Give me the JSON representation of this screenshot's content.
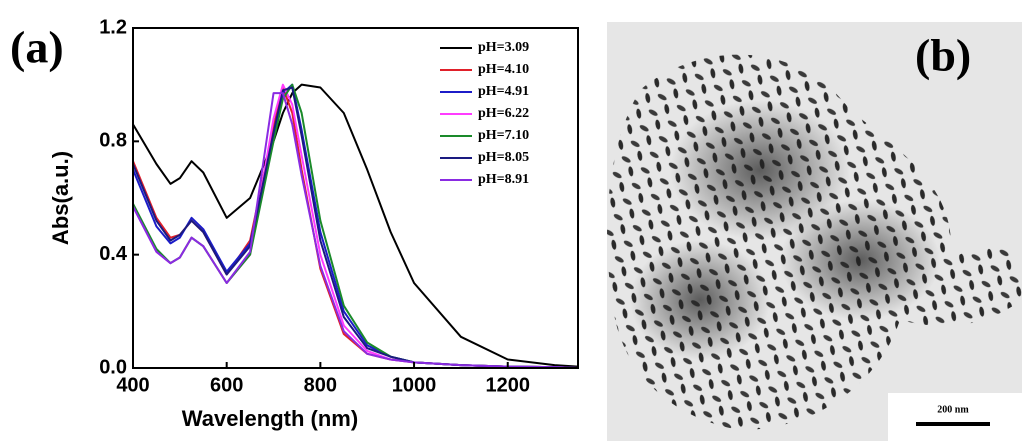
{
  "chart_data": {
    "type": "line",
    "panel_label": "(a)",
    "x_label": "Wavelength (nm)",
    "y_label": "Abs(a.u.)",
    "xlim": [
      400,
      1350
    ],
    "ylim": [
      0,
      1.2
    ],
    "xticks": [
      400,
      600,
      800,
      1000,
      1200
    ],
    "yticks": [
      {
        "value": 0,
        "label": "0.0"
      },
      {
        "value": 0.4,
        "label": "0.4"
      },
      {
        "value": 0.8,
        "label": "0.8"
      },
      {
        "value": 1.2,
        "label": "1.2"
      }
    ],
    "legend": "upper right",
    "x": [
      400,
      450,
      480,
      500,
      525,
      550,
      600,
      650,
      700,
      720,
      740,
      760,
      800,
      850,
      900,
      950,
      1000,
      1100,
      1200,
      1300,
      1350
    ],
    "series": [
      {
        "name": "pH=3.09",
        "color": "#000000",
        "values": [
          0.86,
          0.72,
          0.65,
          0.67,
          0.73,
          0.69,
          0.53,
          0.6,
          0.8,
          0.9,
          0.97,
          1.0,
          0.99,
          0.9,
          0.7,
          0.48,
          0.3,
          0.11,
          0.03,
          0.01,
          0.005
        ]
      },
      {
        "name": "pH=4.10",
        "color": "#e0202a",
        "values": [
          0.73,
          0.53,
          0.46,
          0.47,
          0.52,
          0.48,
          0.33,
          0.45,
          0.85,
          0.99,
          0.9,
          0.7,
          0.35,
          0.12,
          0.05,
          0.03,
          0.02,
          0.01,
          0.005,
          0.003,
          0
        ]
      },
      {
        "name": "pH=4.91",
        "color": "#1c1cc8",
        "values": [
          0.7,
          0.5,
          0.44,
          0.46,
          0.53,
          0.49,
          0.34,
          0.44,
          0.82,
          0.97,
          1.0,
          0.84,
          0.48,
          0.2,
          0.08,
          0.04,
          0.02,
          0.01,
          0.005,
          0.003,
          0
        ]
      },
      {
        "name": "pH=6.22",
        "color": "#ff3cff",
        "values": [
          0.57,
          0.41,
          0.37,
          0.39,
          0.46,
          0.43,
          0.3,
          0.4,
          0.88,
          1.0,
          0.93,
          0.75,
          0.4,
          0.15,
          0.06,
          0.03,
          0.02,
          0.01,
          0.005,
          0.003,
          0
        ]
      },
      {
        "name": "pH=7.10",
        "color": "#1a8a2a",
        "values": [
          0.58,
          0.42,
          0.37,
          0.39,
          0.46,
          0.43,
          0.3,
          0.4,
          0.8,
          0.95,
          1.0,
          0.9,
          0.52,
          0.22,
          0.09,
          0.04,
          0.02,
          0.01,
          0.005,
          0.003,
          0
        ]
      },
      {
        "name": "pH=8.05",
        "color": "#1a1a80",
        "values": [
          0.72,
          0.52,
          0.45,
          0.47,
          0.52,
          0.48,
          0.33,
          0.43,
          0.83,
          0.98,
          0.99,
          0.82,
          0.45,
          0.18,
          0.07,
          0.04,
          0.02,
          0.01,
          0.005,
          0.003,
          0
        ]
      },
      {
        "name": "pH=8.91",
        "color": "#8a2be2",
        "values": [
          0.57,
          0.41,
          0.37,
          0.39,
          0.46,
          0.43,
          0.3,
          0.41,
          0.97,
          0.97,
          0.86,
          0.68,
          0.36,
          0.13,
          0.05,
          0.03,
          0.02,
          0.01,
          0.005,
          0.003,
          0
        ]
      }
    ]
  },
  "image_panel": {
    "label": "(b)",
    "scale_bar": "200 nm"
  }
}
